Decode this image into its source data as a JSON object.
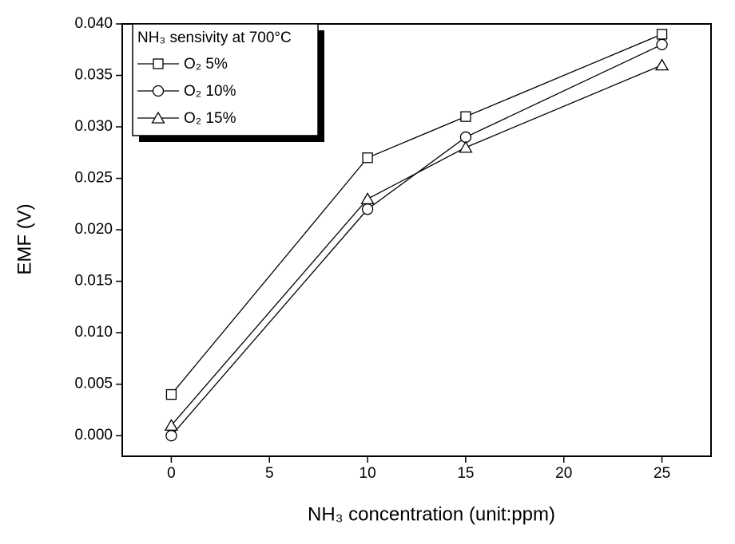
{
  "chart_data": {
    "type": "line",
    "x_label": "NH₃ concentration (unit:ppm)",
    "y_label": "EMF (V)",
    "legend_title": "NH₃ sensivity at 700°C",
    "legend_position": "upper left",
    "x": [
      0,
      10,
      15,
      25
    ],
    "series": [
      {
        "name": "O₂ 5%",
        "color": "#000000",
        "marker": "square",
        "values": [
          0.004,
          0.027,
          0.031,
          0.039
        ]
      },
      {
        "name": "O₂ 10%",
        "color": "#000000",
        "marker": "circle",
        "values": [
          0.0,
          0.022,
          0.029,
          0.038
        ]
      },
      {
        "name": "O₂ 15%",
        "color": "#000000",
        "marker": "triangle",
        "values": [
          0.001,
          0.023,
          0.028,
          0.036
        ]
      }
    ],
    "xlim": [
      -2.5,
      27.5
    ],
    "xticks": [
      0,
      5,
      10,
      15,
      20,
      25
    ],
    "ylim": [
      -0.002,
      0.04
    ],
    "yticks": [
      {
        "value": 0,
        "label": "0.000"
      },
      {
        "value": 0.005,
        "label": "0.005"
      },
      {
        "value": 0.01,
        "label": "0.010"
      },
      {
        "value": 0.015,
        "label": "0.015"
      },
      {
        "value": 0.02,
        "label": "0.020"
      },
      {
        "value": 0.025,
        "label": "0.025"
      },
      {
        "value": 0.03,
        "label": "0.030"
      },
      {
        "value": 0.035,
        "label": "0.035"
      },
      {
        "value": 0.04,
        "label": "0.040"
      }
    ],
    "grid": false
  }
}
